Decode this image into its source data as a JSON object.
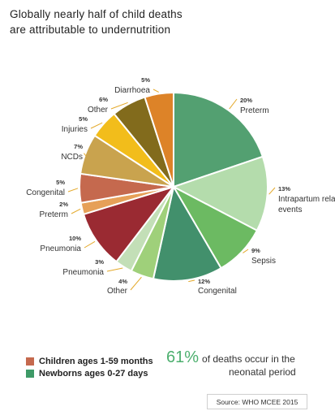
{
  "title": {
    "line1": "Globally nearly half of child deaths",
    "line2": "are attributable to undernutrition"
  },
  "chart_data": {
    "type": "pie",
    "title": "Globally nearly half of child deaths are attributable to undernutrition",
    "unit": "%",
    "slices": [
      {
        "label": "Preterm",
        "value": 20,
        "value_label": "20%",
        "group": "Newborns ages 0-27 days",
        "color": "#53a071"
      },
      {
        "label": "Intrapartum related events",
        "value": 13,
        "value_label": "13%",
        "group": "Newborns ages 0-27 days",
        "color": "#b4dcac"
      },
      {
        "label": "Sepsis",
        "value": 9,
        "value_label": "9%",
        "group": "Newborns ages 0-27 days",
        "color": "#6cba62"
      },
      {
        "label": "Congenital",
        "value": 12,
        "value_label": "12%",
        "group": "Newborns ages 0-27 days",
        "color": "#42906c"
      },
      {
        "label": "Other",
        "value": 4,
        "value_label": "4%",
        "group": "Newborns ages 0-27 days",
        "color": "#9fd07a"
      },
      {
        "label": "Pneumonia",
        "value": 3,
        "value_label": "3%",
        "group": "Newborns ages 0-27 days",
        "color": "#c3dfb7"
      },
      {
        "label": "Pneumonia",
        "value": 10,
        "value_label": "10%",
        "group": "Children ages 1-59 months",
        "color": "#9a2a32"
      },
      {
        "label": "Preterm",
        "value": 2,
        "value_label": "2%",
        "group": "Children ages 1-59 months",
        "color": "#e6a058"
      },
      {
        "label": "Congenital",
        "value": 5,
        "value_label": "5%",
        "group": "Children ages 1-59 months",
        "color": "#c5694e"
      },
      {
        "label": "NCDs",
        "value": 7,
        "value_label": "7%",
        "group": "Children ages 1-59 months",
        "color": "#c9a34e"
      },
      {
        "label": "Injuries",
        "value": 5,
        "value_label": "5%",
        "group": "Children ages 1-59 months",
        "color": "#f2bd1b"
      },
      {
        "label": "Other",
        "value": 6,
        "value_label": "6%",
        "group": "Children ages 1-59 months",
        "color": "#826b1c"
      },
      {
        "label": "Diarrhoea",
        "value": 5,
        "value_label": "5%",
        "group": "Children ages 1-59 months",
        "color": "#dd8328"
      }
    ],
    "legend": [
      {
        "label": "Children ages 1-59 months",
        "color": "#c5694e"
      },
      {
        "label": "Newborns ages 0-27 days",
        "color": "#3e9a67"
      }
    ],
    "legend_position": "bottom-left"
  },
  "stat": {
    "value": "61%",
    "text_line1": "of deaths occur in the",
    "text_line2": "neonatal period",
    "color": "#4caf6e"
  },
  "source": "Source: WHO MCEE 2015",
  "colors": {
    "leader_line": "#e4a92a",
    "label_text": "#333333"
  }
}
